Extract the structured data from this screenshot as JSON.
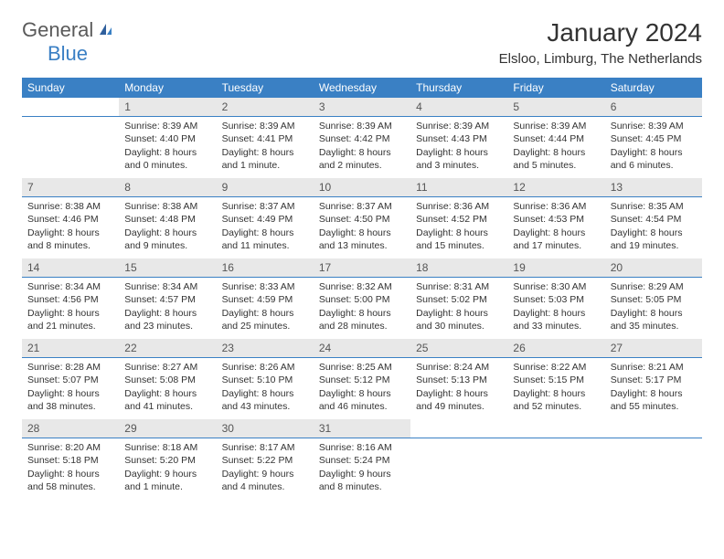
{
  "brand": {
    "general": "General",
    "blue": "Blue"
  },
  "title": "January 2024",
  "subtitle": "Elsloo, Limburg, The Netherlands",
  "colors": {
    "header_bg": "#3a80c4",
    "header_text": "#ffffff",
    "daynum_bg": "#e8e8e8",
    "daynum_border": "#3a80c4",
    "body_text": "#333333",
    "logo_general": "#5a5a5a",
    "logo_blue": "#3a7fc4"
  },
  "weekdays": [
    "Sunday",
    "Monday",
    "Tuesday",
    "Wednesday",
    "Thursday",
    "Friday",
    "Saturday"
  ],
  "weeks": [
    [
      null,
      {
        "n": "1",
        "sr": "Sunrise: 8:39 AM",
        "ss": "Sunset: 4:40 PM",
        "d1": "Daylight: 8 hours",
        "d2": "and 0 minutes."
      },
      {
        "n": "2",
        "sr": "Sunrise: 8:39 AM",
        "ss": "Sunset: 4:41 PM",
        "d1": "Daylight: 8 hours",
        "d2": "and 1 minute."
      },
      {
        "n": "3",
        "sr": "Sunrise: 8:39 AM",
        "ss": "Sunset: 4:42 PM",
        "d1": "Daylight: 8 hours",
        "d2": "and 2 minutes."
      },
      {
        "n": "4",
        "sr": "Sunrise: 8:39 AM",
        "ss": "Sunset: 4:43 PM",
        "d1": "Daylight: 8 hours",
        "d2": "and 3 minutes."
      },
      {
        "n": "5",
        "sr": "Sunrise: 8:39 AM",
        "ss": "Sunset: 4:44 PM",
        "d1": "Daylight: 8 hours",
        "d2": "and 5 minutes."
      },
      {
        "n": "6",
        "sr": "Sunrise: 8:39 AM",
        "ss": "Sunset: 4:45 PM",
        "d1": "Daylight: 8 hours",
        "d2": "and 6 minutes."
      }
    ],
    [
      {
        "n": "7",
        "sr": "Sunrise: 8:38 AM",
        "ss": "Sunset: 4:46 PM",
        "d1": "Daylight: 8 hours",
        "d2": "and 8 minutes."
      },
      {
        "n": "8",
        "sr": "Sunrise: 8:38 AM",
        "ss": "Sunset: 4:48 PM",
        "d1": "Daylight: 8 hours",
        "d2": "and 9 minutes."
      },
      {
        "n": "9",
        "sr": "Sunrise: 8:37 AM",
        "ss": "Sunset: 4:49 PM",
        "d1": "Daylight: 8 hours",
        "d2": "and 11 minutes."
      },
      {
        "n": "10",
        "sr": "Sunrise: 8:37 AM",
        "ss": "Sunset: 4:50 PM",
        "d1": "Daylight: 8 hours",
        "d2": "and 13 minutes."
      },
      {
        "n": "11",
        "sr": "Sunrise: 8:36 AM",
        "ss": "Sunset: 4:52 PM",
        "d1": "Daylight: 8 hours",
        "d2": "and 15 minutes."
      },
      {
        "n": "12",
        "sr": "Sunrise: 8:36 AM",
        "ss": "Sunset: 4:53 PM",
        "d1": "Daylight: 8 hours",
        "d2": "and 17 minutes."
      },
      {
        "n": "13",
        "sr": "Sunrise: 8:35 AM",
        "ss": "Sunset: 4:54 PM",
        "d1": "Daylight: 8 hours",
        "d2": "and 19 minutes."
      }
    ],
    [
      {
        "n": "14",
        "sr": "Sunrise: 8:34 AM",
        "ss": "Sunset: 4:56 PM",
        "d1": "Daylight: 8 hours",
        "d2": "and 21 minutes."
      },
      {
        "n": "15",
        "sr": "Sunrise: 8:34 AM",
        "ss": "Sunset: 4:57 PM",
        "d1": "Daylight: 8 hours",
        "d2": "and 23 minutes."
      },
      {
        "n": "16",
        "sr": "Sunrise: 8:33 AM",
        "ss": "Sunset: 4:59 PM",
        "d1": "Daylight: 8 hours",
        "d2": "and 25 minutes."
      },
      {
        "n": "17",
        "sr": "Sunrise: 8:32 AM",
        "ss": "Sunset: 5:00 PM",
        "d1": "Daylight: 8 hours",
        "d2": "and 28 minutes."
      },
      {
        "n": "18",
        "sr": "Sunrise: 8:31 AM",
        "ss": "Sunset: 5:02 PM",
        "d1": "Daylight: 8 hours",
        "d2": "and 30 minutes."
      },
      {
        "n": "19",
        "sr": "Sunrise: 8:30 AM",
        "ss": "Sunset: 5:03 PM",
        "d1": "Daylight: 8 hours",
        "d2": "and 33 minutes."
      },
      {
        "n": "20",
        "sr": "Sunrise: 8:29 AM",
        "ss": "Sunset: 5:05 PM",
        "d1": "Daylight: 8 hours",
        "d2": "and 35 minutes."
      }
    ],
    [
      {
        "n": "21",
        "sr": "Sunrise: 8:28 AM",
        "ss": "Sunset: 5:07 PM",
        "d1": "Daylight: 8 hours",
        "d2": "and 38 minutes."
      },
      {
        "n": "22",
        "sr": "Sunrise: 8:27 AM",
        "ss": "Sunset: 5:08 PM",
        "d1": "Daylight: 8 hours",
        "d2": "and 41 minutes."
      },
      {
        "n": "23",
        "sr": "Sunrise: 8:26 AM",
        "ss": "Sunset: 5:10 PM",
        "d1": "Daylight: 8 hours",
        "d2": "and 43 minutes."
      },
      {
        "n": "24",
        "sr": "Sunrise: 8:25 AM",
        "ss": "Sunset: 5:12 PM",
        "d1": "Daylight: 8 hours",
        "d2": "and 46 minutes."
      },
      {
        "n": "25",
        "sr": "Sunrise: 8:24 AM",
        "ss": "Sunset: 5:13 PM",
        "d1": "Daylight: 8 hours",
        "d2": "and 49 minutes."
      },
      {
        "n": "26",
        "sr": "Sunrise: 8:22 AM",
        "ss": "Sunset: 5:15 PM",
        "d1": "Daylight: 8 hours",
        "d2": "and 52 minutes."
      },
      {
        "n": "27",
        "sr": "Sunrise: 8:21 AM",
        "ss": "Sunset: 5:17 PM",
        "d1": "Daylight: 8 hours",
        "d2": "and 55 minutes."
      }
    ],
    [
      {
        "n": "28",
        "sr": "Sunrise: 8:20 AM",
        "ss": "Sunset: 5:18 PM",
        "d1": "Daylight: 8 hours",
        "d2": "and 58 minutes."
      },
      {
        "n": "29",
        "sr": "Sunrise: 8:18 AM",
        "ss": "Sunset: 5:20 PM",
        "d1": "Daylight: 9 hours",
        "d2": "and 1 minute."
      },
      {
        "n": "30",
        "sr": "Sunrise: 8:17 AM",
        "ss": "Sunset: 5:22 PM",
        "d1": "Daylight: 9 hours",
        "d2": "and 4 minutes."
      },
      {
        "n": "31",
        "sr": "Sunrise: 8:16 AM",
        "ss": "Sunset: 5:24 PM",
        "d1": "Daylight: 9 hours",
        "d2": "and 8 minutes."
      },
      null,
      null,
      null
    ]
  ]
}
